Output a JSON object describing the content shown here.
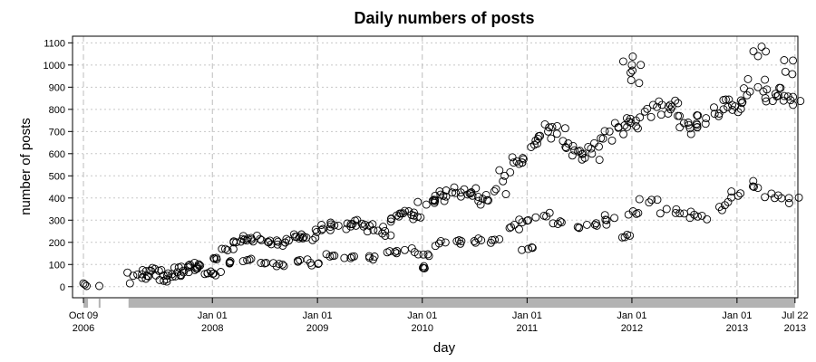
{
  "chart_data": {
    "type": "scatter",
    "title": "Daily numbers of posts",
    "xlabel": "day",
    "ylabel": "number of posts",
    "xlim": [
      "2006-09-01",
      "2013-08-01"
    ],
    "ylim": [
      -50,
      1130
    ],
    "y_ticks": [
      0,
      100,
      200,
      300,
      400,
      500,
      600,
      700,
      800,
      900,
      1000,
      1100
    ],
    "x_ticks": [
      {
        "date": "2006-10-09",
        "line1": "Oct 09",
        "line2": "2006"
      },
      {
        "date": "2008-01-01",
        "line1": "Jan 01",
        "line2": "2008"
      },
      {
        "date": "2009-01-01",
        "line1": "Jan 01",
        "line2": "2009"
      },
      {
        "date": "2010-01-01",
        "line1": "Jan 01",
        "line2": "2010"
      },
      {
        "date": "2011-01-01",
        "line1": "Jan 01",
        "line2": "2011"
      },
      {
        "date": "2012-01-01",
        "line1": "Jan 01",
        "line2": "2012"
      },
      {
        "date": "2013-01-01",
        "line1": "Jan 01",
        "line2": "2013"
      },
      {
        "date": "2013-07-22",
        "line1": "Jul 22",
        "line2": "2013"
      }
    ],
    "grid": true,
    "legend": "none",
    "marker": "open-circle",
    "rug_ranges": [
      [
        "2006-10-09",
        "2006-10-25"
      ],
      [
        "2006-12-01",
        "2006-12-06"
      ],
      [
        "2007-03-15",
        "2013-07-22"
      ]
    ],
    "series": [
      {
        "points": [
          [
            "2006-10-09",
            15
          ],
          [
            "2006-10-14",
            10
          ],
          [
            "2006-10-20",
            3
          ],
          [
            "2006-12-03",
            3
          ],
          [
            "2007-03-20",
            15
          ],
          [
            "2007-04-15",
            55
          ],
          [
            "2007-05-15",
            70
          ],
          [
            "2007-06-15",
            80
          ],
          [
            "2007-07-15",
            50
          ],
          [
            "2007-08-15",
            45
          ],
          [
            "2007-09-15",
            90
          ],
          [
            "2007-10-15",
            100
          ],
          [
            "2007-11-15",
            95
          ],
          [
            "2007-12-15",
            60
          ],
          [
            "2008-01-15",
            130
          ],
          [
            "2008-02-15",
            170
          ],
          [
            "2008-03-15",
            200
          ],
          [
            "2008-04-15",
            215
          ],
          [
            "2008-05-15",
            220
          ],
          [
            "2008-06-15",
            215
          ],
          [
            "2008-07-15",
            200
          ],
          [
            "2008-08-15",
            190
          ],
          [
            "2008-09-15",
            215
          ],
          [
            "2008-10-15",
            225
          ],
          [
            "2008-11-15",
            225
          ],
          [
            "2008-12-15",
            210
          ],
          [
            "2009-01-15",
            255
          ],
          [
            "2009-02-15",
            270
          ],
          [
            "2009-03-15",
            275
          ],
          [
            "2009-04-15",
            285
          ],
          [
            "2009-05-15",
            275
          ],
          [
            "2009-06-15",
            280
          ],
          [
            "2009-07-15",
            255
          ],
          [
            "2009-08-15",
            240
          ],
          [
            "2009-09-15",
            305
          ],
          [
            "2009-10-15",
            330
          ],
          [
            "2009-11-15",
            340
          ],
          [
            "2009-12-15",
            315
          ],
          [
            "2010-01-15",
            370
          ],
          [
            "2010-02-15",
            410
          ],
          [
            "2010-03-15",
            410
          ],
          [
            "2010-04-15",
            425
          ],
          [
            "2010-05-15",
            425
          ],
          [
            "2010-06-15",
            420
          ],
          [
            "2010-07-15",
            405
          ],
          [
            "2010-08-15",
            390
          ],
          [
            "2010-09-15",
            440
          ],
          [
            "2010-10-15",
            500
          ],
          [
            "2010-11-15",
            560
          ],
          [
            "2010-12-15",
            560
          ],
          [
            "2011-01-15",
            630
          ],
          [
            "2011-02-15",
            680
          ],
          [
            "2011-03-15",
            700
          ],
          [
            "2011-04-15",
            690
          ],
          [
            "2011-05-15",
            630
          ],
          [
            "2011-06-15",
            615
          ],
          [
            "2011-07-15",
            600
          ],
          [
            "2011-08-15",
            600
          ],
          [
            "2011-09-15",
            670
          ],
          [
            "2011-10-15",
            700
          ],
          [
            "2011-11-15",
            720
          ],
          [
            "2011-12-15",
            720
          ],
          [
            "2012-01-15",
            750
          ],
          [
            "2012-02-15",
            790
          ],
          [
            "2012-03-15",
            820
          ],
          [
            "2012-04-15",
            820
          ],
          [
            "2012-05-15",
            800
          ],
          [
            "2012-06-15",
            770
          ],
          [
            "2012-07-15",
            740
          ],
          [
            "2012-08-15",
            730
          ],
          [
            "2012-09-15",
            760
          ],
          [
            "2012-10-15",
            780
          ],
          [
            "2012-11-15",
            800
          ],
          [
            "2012-12-15",
            820
          ],
          [
            "2013-01-15",
            840
          ],
          [
            "2013-02-15",
            880
          ],
          [
            "2013-03-15",
            900
          ],
          [
            "2013-04-15",
            890
          ],
          [
            "2013-05-15",
            870
          ],
          [
            "2013-06-15",
            860
          ],
          [
            "2013-07-15",
            820
          ],
          [
            "2007-05-01",
            40
          ],
          [
            "2007-07-01",
            30
          ],
          [
            "2007-09-01",
            65
          ],
          [
            "2007-11-01",
            75
          ],
          [
            "2008-01-05",
            60
          ],
          [
            "2008-03-01",
            110
          ],
          [
            "2008-05-01",
            120
          ],
          [
            "2008-07-01",
            105
          ],
          [
            "2008-09-01",
            100
          ],
          [
            "2008-11-01",
            120
          ],
          [
            "2009-01-05",
            105
          ],
          [
            "2009-03-01",
            140
          ],
          [
            "2009-05-01",
            135
          ],
          [
            "2009-07-01",
            130
          ],
          [
            "2009-09-01",
            155
          ],
          [
            "2009-11-01",
            165
          ],
          [
            "2010-01-05",
            145
          ],
          [
            "2010-03-01",
            195
          ],
          [
            "2010-05-01",
            205
          ],
          [
            "2010-07-01",
            205
          ],
          [
            "2010-09-01",
            210
          ],
          [
            "2010-11-01",
            265
          ],
          [
            "2011-01-05",
            300
          ],
          [
            "2011-03-01",
            320
          ],
          [
            "2011-05-01",
            290
          ],
          [
            "2011-07-01",
            265
          ],
          [
            "2011-09-01",
            275
          ],
          [
            "2011-11-01",
            310
          ],
          [
            "2012-01-05",
            340
          ],
          [
            "2012-03-01",
            380
          ],
          [
            "2012-05-01",
            350
          ],
          [
            "2012-07-01",
            330
          ],
          [
            "2012-09-01",
            320
          ],
          [
            "2012-11-01",
            360
          ],
          [
            "2013-01-05",
            410
          ],
          [
            "2013-03-01",
            450
          ],
          [
            "2013-05-01",
            420
          ],
          [
            "2013-07-01",
            400
          ],
          [
            "2012-01-01",
            1000
          ],
          [
            "2012-01-03",
            975
          ],
          [
            "2013-03-15",
            1040
          ],
          [
            "2013-07-15",
            1020
          ],
          [
            "2011-12-25",
            230
          ],
          [
            "2011-01-05",
            170
          ],
          [
            "2010-01-03",
            85
          ]
        ]
      }
    ]
  }
}
